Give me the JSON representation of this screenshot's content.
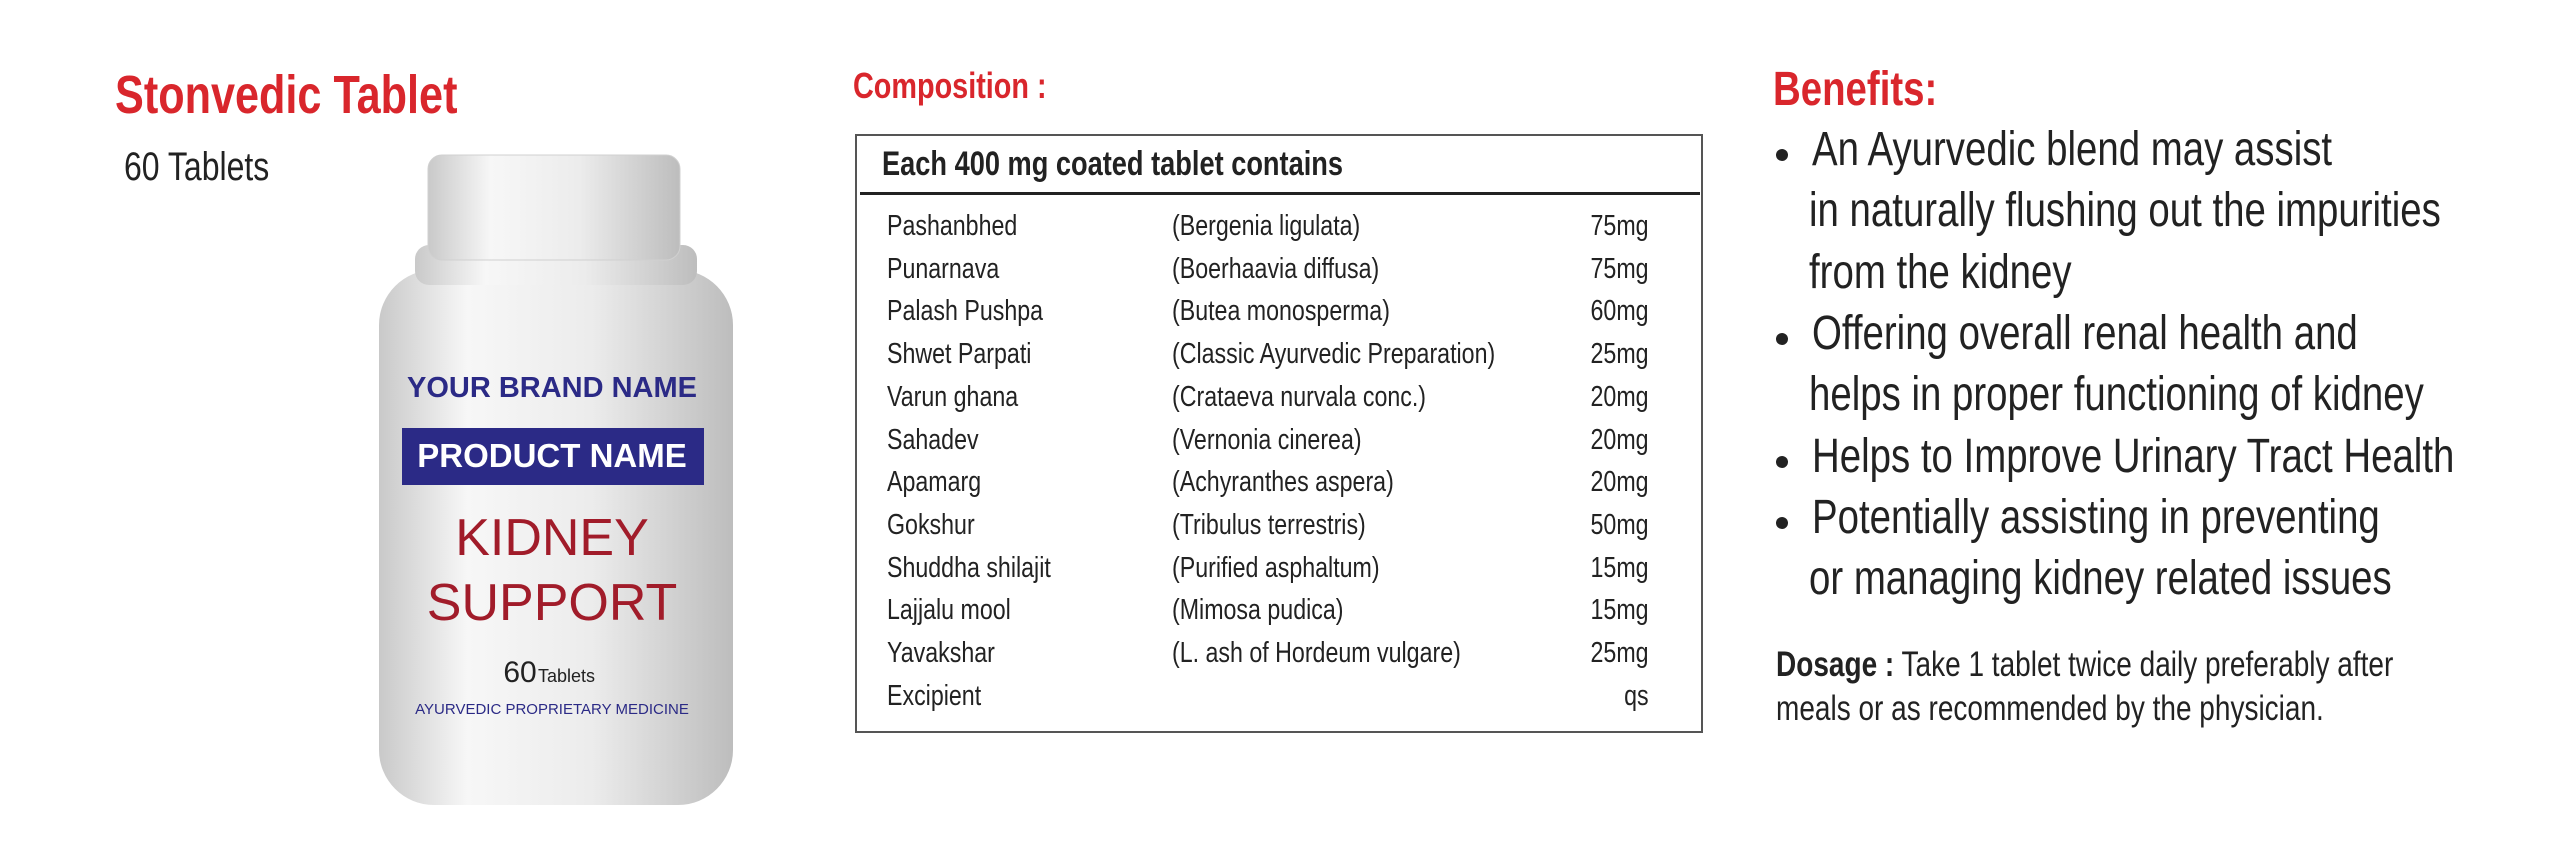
{
  "header": {
    "title": "Stonvedic Tablet",
    "subtitle": "60 Tablets"
  },
  "product_image": {
    "brand": "YOUR BRAND NAME",
    "product": "PRODUCT NAME",
    "label_lines": [
      "KIDNEY",
      "SUPPORT"
    ],
    "count": "60",
    "count_unit": "Tablets",
    "category": "AYURVEDIC PROPRIETARY MEDICINE"
  },
  "composition": {
    "title": "Composition :",
    "table": {
      "header": "Each 400 mg coated tablet contains",
      "rows": [
        {
          "name": "Pashanbhed",
          "source": "(Bergenia ligulata)",
          "amount": "75mg"
        },
        {
          "name": "Punarnava",
          "source": "(Boerhaavia diffusa)",
          "amount": "75mg"
        },
        {
          "name": "Palash Pushpa",
          "source": "(Butea monosperma)",
          "amount": "60mg"
        },
        {
          "name": "Shwet Parpati",
          "source": "(Classic Ayurvedic Preparation)",
          "amount": "25mg"
        },
        {
          "name": "Varun ghana",
          "source": "(Crataeva nurvala conc.)",
          "amount": "20mg"
        },
        {
          "name": "Sahadev",
          "source": "(Vernonia cinerea)",
          "amount": "20mg"
        },
        {
          "name": "Apamarg",
          "source": "(Achyranthes aspera)",
          "amount": "20mg"
        },
        {
          "name": "Gokshur",
          "source": "(Tribulus terrestris)",
          "amount": "50mg"
        },
        {
          "name": "Shuddha shilajit",
          "source": "(Purified asphaltum)",
          "amount": "15mg"
        },
        {
          "name": "Lajjalu mool",
          "source": "(Mimosa pudica)",
          "amount": "15mg"
        },
        {
          "name": "Yavakshar",
          "source": "(L. ash of Hordeum vulgare)",
          "amount": "25mg"
        },
        {
          "name": "Excipient",
          "amount": "qs"
        }
      ]
    }
  },
  "benefits": {
    "title": "Benefits:",
    "items": [
      [
        "An Ayurvedic blend may assist",
        "in naturally flushing out the impurities",
        "from the kidney"
      ],
      [
        "Offering overall renal health and",
        "helps in proper functioning of kidney"
      ],
      [
        "Helps to Improve Urinary Tract Health"
      ],
      [
        "Potentially assisting in preventing",
        "or managing kidney related issues"
      ]
    ]
  },
  "dosage": {
    "label": "Dosage :",
    "text": [
      "Take 1 tablet twice daily preferably after",
      "meals or as recommended by the physician."
    ]
  }
}
